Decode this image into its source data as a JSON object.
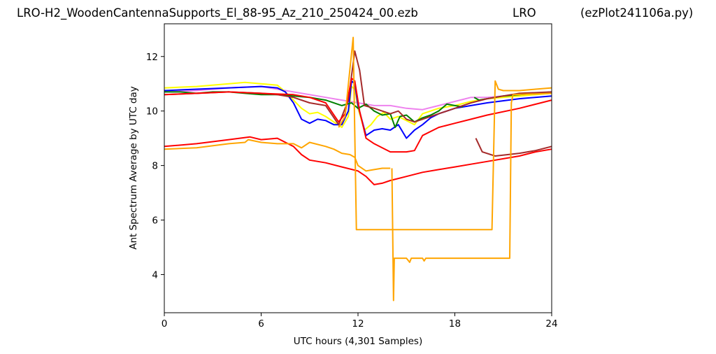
{
  "header": {
    "file_title": "LRO-H2_WoodenCantennaSupports_El_88-95_Az_210_250424_00.ezb",
    "site": "LRO",
    "script_name": "(ezPlot241106a.py)"
  },
  "chart_data": {
    "type": "line",
    "xlabel": "UTC hours  (4,301 Samples)",
    "ylabel": "Ant Spectrum Average by UTC day",
    "xlim": [
      0,
      24
    ],
    "ylim": [
      2.6,
      13.2
    ],
    "xticks": [
      0,
      6,
      12,
      18,
      24
    ],
    "xtick_labels": [
      "0",
      "6",
      "12",
      "18",
      "24"
    ],
    "yticks": [
      4,
      6,
      8,
      10,
      12
    ],
    "ytick_labels": [
      "4",
      "6",
      "8",
      "10",
      "12"
    ],
    "grid": false,
    "legend": "none",
    "series": [
      {
        "color": "#ee82ee",
        "points": [
          [
            0,
            10.7
          ],
          [
            2,
            10.75
          ],
          [
            4,
            10.85
          ],
          [
            6,
            10.9
          ],
          [
            8,
            10.7
          ],
          [
            10,
            10.5
          ],
          [
            11,
            10.4
          ],
          [
            12,
            10.3
          ],
          [
            13,
            10.2
          ],
          [
            14,
            10.2
          ],
          [
            15,
            10.1
          ],
          [
            16,
            10.05
          ],
          [
            17,
            10.2
          ],
          [
            18,
            10.35
          ],
          [
            19,
            10.5
          ],
          [
            20,
            10.5
          ],
          [
            22,
            10.6
          ],
          [
            24,
            10.65
          ]
        ]
      },
      {
        "color": "#ffff00",
        "points": [
          [
            0,
            10.85
          ],
          [
            2,
            10.9
          ],
          [
            4,
            11.0
          ],
          [
            5,
            11.05
          ],
          [
            6,
            11.0
          ],
          [
            7,
            10.95
          ],
          [
            7.5,
            10.7
          ],
          [
            8,
            10.4
          ],
          [
            8.5,
            10.1
          ],
          [
            9,
            9.9
          ],
          [
            9.5,
            9.95
          ],
          [
            10,
            9.8
          ],
          [
            10.5,
            9.6
          ],
          [
            11,
            9.4
          ],
          [
            11.4,
            9.8
          ],
          [
            11.6,
            10.9
          ],
          [
            11.8,
            10.8
          ],
          [
            12,
            10.1
          ],
          [
            12.4,
            9.3
          ],
          [
            12.8,
            9.5
          ],
          [
            13.2,
            9.8
          ],
          [
            13.6,
            9.95
          ],
          [
            14,
            9.7
          ],
          [
            14.5,
            9.8
          ],
          [
            15,
            9.65
          ],
          [
            15.5,
            9.5
          ],
          [
            16,
            9.9
          ],
          [
            16.5,
            10.0
          ],
          [
            17,
            10.1
          ],
          [
            18,
            10.2
          ],
          [
            19,
            10.35
          ],
          [
            20,
            10.45
          ],
          [
            22,
            10.55
          ],
          [
            24,
            10.65
          ]
        ]
      },
      {
        "color": "#0000ff",
        "points": [
          [
            0,
            10.75
          ],
          [
            2,
            10.8
          ],
          [
            4,
            10.85
          ],
          [
            6,
            10.9
          ],
          [
            7,
            10.85
          ],
          [
            7.5,
            10.7
          ],
          [
            8,
            10.3
          ],
          [
            8.5,
            9.7
          ],
          [
            9,
            9.55
          ],
          [
            9.5,
            9.7
          ],
          [
            10,
            9.65
          ],
          [
            10.5,
            9.5
          ],
          [
            11,
            9.5
          ],
          [
            11.4,
            10.0
          ],
          [
            11.6,
            11.1
          ],
          [
            11.8,
            11.0
          ],
          [
            12,
            10.2
          ],
          [
            12.5,
            9.1
          ],
          [
            13,
            9.3
          ],
          [
            13.5,
            9.35
          ],
          [
            14,
            9.3
          ],
          [
            14.5,
            9.5
          ],
          [
            15,
            9.0
          ],
          [
            15.5,
            9.3
          ],
          [
            16,
            9.5
          ],
          [
            16.5,
            9.75
          ],
          [
            17,
            9.9
          ],
          [
            18,
            10.1
          ],
          [
            19,
            10.2
          ],
          [
            20,
            10.3
          ],
          [
            22,
            10.45
          ],
          [
            24,
            10.55
          ]
        ]
      },
      {
        "color": "#008000",
        "points": [
          [
            0,
            10.7
          ],
          [
            1,
            10.7
          ],
          [
            2,
            10.65
          ],
          [
            3,
            10.7
          ],
          [
            4,
            10.7
          ],
          [
            5,
            10.65
          ],
          [
            6,
            10.6
          ],
          [
            7,
            10.6
          ],
          [
            8,
            10.55
          ],
          [
            9,
            10.5
          ],
          [
            10,
            10.4
          ],
          [
            11,
            10.2
          ],
          [
            11.6,
            10.3
          ],
          [
            12,
            10.1
          ],
          [
            12.5,
            10.25
          ],
          [
            13,
            10.0
          ],
          [
            13.5,
            9.85
          ],
          [
            14,
            9.9
          ],
          [
            14.3,
            9.4
          ],
          [
            14.6,
            9.8
          ],
          [
            15,
            9.85
          ],
          [
            15.5,
            9.6
          ],
          [
            16,
            9.75
          ],
          [
            16.5,
            9.85
          ],
          [
            17,
            10.0
          ],
          [
            17.5,
            10.25
          ],
          [
            18,
            10.2
          ],
          [
            18.5,
            10.15
          ]
        ]
      },
      {
        "color": "#008000",
        "points": [
          [
            19.2,
            10.5
          ],
          [
            19.5,
            10.4
          ],
          [
            20,
            10.45
          ],
          [
            21,
            10.55
          ],
          [
            22,
            10.6
          ],
          [
            23,
            10.65
          ],
          [
            24,
            10.7
          ]
        ]
      },
      {
        "color": "#a52a2a",
        "points": [
          [
            0,
            10.6
          ],
          [
            2,
            10.65
          ],
          [
            4,
            10.7
          ],
          [
            6,
            10.65
          ],
          [
            7,
            10.6
          ],
          [
            8,
            10.5
          ],
          [
            9,
            10.3
          ],
          [
            10,
            10.2
          ],
          [
            10.8,
            9.5
          ],
          [
            11.4,
            10.4
          ],
          [
            11.8,
            12.2
          ],
          [
            12.1,
            11.5
          ],
          [
            12.4,
            10.2
          ],
          [
            13,
            10.1
          ],
          [
            13.5,
            10.0
          ],
          [
            14,
            9.9
          ],
          [
            14.5,
            10.0
          ],
          [
            15,
            9.7
          ],
          [
            15.5,
            9.6
          ],
          [
            16,
            9.7
          ],
          [
            17,
            9.9
          ],
          [
            18,
            10.1
          ],
          [
            19,
            10.3
          ],
          [
            20,
            10.45
          ],
          [
            21,
            10.55
          ],
          [
            22,
            10.65
          ],
          [
            24,
            10.7
          ]
        ]
      },
      {
        "color": "#a52a2a",
        "points": [
          [
            19.3,
            9.0
          ],
          [
            19.7,
            8.5
          ],
          [
            20.5,
            8.35
          ],
          [
            22,
            8.45
          ],
          [
            23,
            8.55
          ],
          [
            24,
            8.7
          ]
        ]
      },
      {
        "color": "#ff0000",
        "points": [
          [
            0,
            10.6
          ],
          [
            2,
            10.65
          ],
          [
            4,
            10.7
          ],
          [
            6,
            10.65
          ],
          [
            8,
            10.6
          ],
          [
            9,
            10.5
          ],
          [
            10,
            10.3
          ],
          [
            10.8,
            9.6
          ],
          [
            11.2,
            9.9
          ],
          [
            11.6,
            11.2
          ],
          [
            11.8,
            11.1
          ],
          [
            12.1,
            10.0
          ],
          [
            12.5,
            9.0
          ],
          [
            13,
            8.8
          ],
          [
            14,
            8.5
          ],
          [
            15,
            8.5
          ],
          [
            15.5,
            8.55
          ],
          [
            16,
            9.1
          ],
          [
            17,
            9.4
          ],
          [
            18,
            9.55
          ],
          [
            19,
            9.7
          ],
          [
            20,
            9.85
          ],
          [
            22,
            10.1
          ],
          [
            24,
            10.4
          ]
        ]
      },
      {
        "color": "#ff0000",
        "points": [
          [
            0,
            8.7
          ],
          [
            2,
            8.8
          ],
          [
            4,
            8.95
          ],
          [
            5.3,
            9.05
          ],
          [
            6,
            8.95
          ],
          [
            7,
            9.0
          ],
          [
            8,
            8.7
          ],
          [
            8.5,
            8.4
          ],
          [
            9,
            8.2
          ],
          [
            10,
            8.1
          ],
          [
            11,
            7.95
          ],
          [
            12,
            7.8
          ],
          [
            12.5,
            7.6
          ],
          [
            13,
            7.3
          ],
          [
            13.5,
            7.35
          ],
          [
            14,
            7.45
          ],
          [
            15,
            7.6
          ],
          [
            16,
            7.75
          ],
          [
            17,
            7.85
          ],
          [
            18,
            7.95
          ],
          [
            19,
            8.05
          ],
          [
            20,
            8.15
          ],
          [
            21,
            8.25
          ],
          [
            22,
            8.35
          ],
          [
            23,
            8.5
          ],
          [
            24,
            8.6
          ]
        ]
      },
      {
        "color": "#ffa500",
        "points": [
          [
            0,
            8.6
          ],
          [
            2,
            8.65
          ],
          [
            4,
            8.8
          ],
          [
            5,
            8.85
          ],
          [
            5.2,
            8.95
          ],
          [
            6,
            8.85
          ],
          [
            7,
            8.8
          ],
          [
            8,
            8.8
          ],
          [
            8.5,
            8.65
          ],
          [
            9,
            8.85
          ],
          [
            10,
            8.7
          ],
          [
            10.5,
            8.6
          ],
          [
            11,
            8.45
          ],
          [
            11.5,
            8.4
          ],
          [
            11.8,
            8.3
          ],
          [
            12,
            8.0
          ],
          [
            12.5,
            7.8
          ],
          [
            13,
            7.85
          ],
          [
            13.5,
            7.9
          ],
          [
            14,
            7.9
          ]
        ]
      },
      {
        "color": "#ffa500",
        "points": [
          [
            10.8,
            9.4
          ],
          [
            11.2,
            9.8
          ],
          [
            11.7,
            12.7
          ],
          [
            11.9,
            5.65
          ],
          [
            12,
            5.65
          ],
          [
            20.3,
            5.65
          ],
          [
            20.5,
            11.1
          ],
          [
            20.7,
            10.8
          ],
          [
            21,
            10.75
          ],
          [
            22,
            10.75
          ],
          [
            23,
            10.8
          ],
          [
            24,
            10.85
          ]
        ]
      },
      {
        "color": "#ffa500",
        "points": [
          [
            14.1,
            7.9
          ],
          [
            14.2,
            3.05
          ],
          [
            14.25,
            4.6
          ],
          [
            15,
            4.6
          ],
          [
            15.2,
            4.45
          ],
          [
            15.3,
            4.6
          ],
          [
            16,
            4.6
          ],
          [
            16.1,
            4.5
          ],
          [
            16.2,
            4.6
          ],
          [
            21.4,
            4.6
          ],
          [
            21.5,
            10.3
          ],
          [
            21.6,
            10.6
          ],
          [
            24,
            10.65
          ]
        ]
      }
    ]
  }
}
